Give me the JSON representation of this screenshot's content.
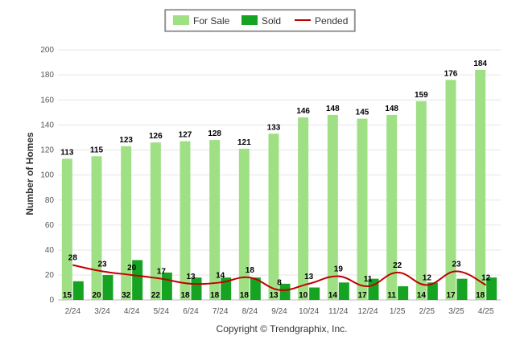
{
  "chart_data": {
    "type": "bar",
    "title": "",
    "xlabel": "",
    "ylabel": "Number of Homes",
    "categories": [
      "2/24",
      "3/24",
      "4/24",
      "5/24",
      "6/24",
      "7/24",
      "8/24",
      "9/24",
      "10/24",
      "11/24",
      "12/24",
      "1/25",
      "2/25",
      "3/25",
      "4/25"
    ],
    "series": [
      {
        "name": "For Sale",
        "kind": "bar",
        "color": "#9fe085",
        "values": [
          113,
          115,
          123,
          126,
          127,
          128,
          121,
          133,
          146,
          148,
          145,
          148,
          159,
          176,
          184
        ]
      },
      {
        "name": "Sold",
        "kind": "bar",
        "color": "#16a321",
        "values": [
          15,
          20,
          32,
          22,
          18,
          18,
          18,
          13,
          10,
          14,
          17,
          11,
          14,
          17,
          18
        ]
      },
      {
        "name": "Pended",
        "kind": "line",
        "color": "#c00000",
        "values": [
          28,
          23,
          20,
          17,
          13,
          14,
          18,
          8,
          13,
          19,
          11,
          22,
          12,
          23,
          12
        ]
      }
    ],
    "yticks": [
      "0",
      "20",
      "40",
      "60",
      "80",
      "100",
      "120",
      "140",
      "160",
      "180",
      "200"
    ],
    "ylim": [
      0,
      200
    ],
    "y_scale": "piecewise linear: 0-40 expanded, 40-200 compressed",
    "grid": true,
    "legend": "top-center",
    "copyright": "Copyright © Trendgraphix, Inc."
  }
}
